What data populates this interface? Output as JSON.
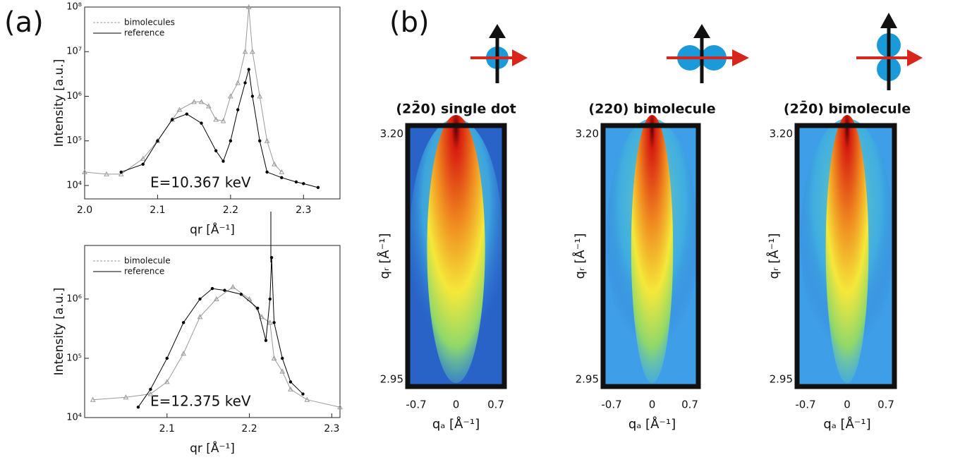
{
  "panel_a_label": "(a)",
  "panel_b_label": "(b)",
  "chart_data": [
    {
      "type": "line",
      "log_y": true,
      "y_label": "Intensity [a.u.]",
      "x_label": "qr [Å⁻¹]",
      "annotation": "E=10.367 keV",
      "xlim": [
        2.0,
        2.35
      ],
      "xticks": [
        {
          "value": 2.0,
          "label": "2.0"
        },
        2.1,
        2.2,
        2.3
      ],
      "ylim": [
        5000,
        100000000
      ],
      "yticks": [
        {
          "value": 10000,
          "label": "10⁴"
        },
        {
          "value": 100000,
          "label": "10⁵"
        },
        {
          "value": 1000000,
          "label": "10⁶"
        },
        {
          "value": 10000000,
          "label": "10⁷"
        },
        {
          "value": 100000000,
          "label": "10⁸"
        }
      ],
      "series": [
        {
          "name": "bimolecules",
          "color": "#999999",
          "marker": "triangle",
          "x": [
            2.0,
            2.03,
            2.05,
            2.08,
            2.1,
            2.12,
            2.13,
            2.15,
            2.16,
            2.17,
            2.18,
            2.19,
            2.2,
            2.21,
            2.22,
            2.225,
            2.23,
            2.24,
            2.25,
            2.26,
            2.27
          ],
          "values": [
            20000,
            18000,
            18000,
            40000,
            100000,
            300000,
            500000,
            750000,
            750000,
            600000,
            300000,
            280000,
            1000000,
            2000000,
            10000000,
            100000000,
            10000000,
            1000000,
            100000,
            30000,
            20000
          ]
        },
        {
          "name": "reference",
          "color": "#000000",
          "marker": "circle",
          "x": [
            2.05,
            2.08,
            2.1,
            2.12,
            2.14,
            2.16,
            2.18,
            2.19,
            2.2,
            2.21,
            2.22,
            2.225,
            2.23,
            2.24,
            2.25,
            2.27,
            2.29,
            2.3,
            2.32
          ],
          "values": [
            20000,
            30000,
            100000,
            300000,
            400000,
            250000,
            60000,
            35000,
            100000,
            500000,
            2000000,
            4000000,
            1000000,
            100000,
            20000,
            15000,
            12000,
            11000,
            9000
          ]
        }
      ]
    },
    {
      "type": "line",
      "log_y": true,
      "y_label": "Intensity [a.u.]",
      "x_label": "qr [Å⁻¹]",
      "annotation": "E=12.375 keV",
      "xlim": [
        2.0,
        2.31
      ],
      "xticks": [
        2.1,
        2.2,
        2.3
      ],
      "ylim": [
        10000,
        8000000
      ],
      "yticks": [
        {
          "value": 10000,
          "label": "10⁴"
        },
        {
          "value": 100000,
          "label": "10⁵"
        },
        {
          "value": 1000000,
          "label": "10⁶"
        }
      ],
      "series": [
        {
          "name": "bimolecule",
          "color": "#999999",
          "marker": "triangle",
          "x": [
            2.01,
            2.05,
            2.08,
            2.1,
            2.12,
            2.14,
            2.16,
            2.18,
            2.2,
            2.215,
            2.225,
            2.23,
            2.24,
            2.25,
            2.27,
            2.31
          ],
          "values": [
            20000,
            22000,
            25000,
            40000,
            120000,
            500000,
            1000000,
            1600000,
            1000000,
            500000,
            400000,
            100000,
            60000,
            30000,
            20000,
            15000
          ]
        },
        {
          "name": "reference",
          "color": "#000000",
          "marker": "circle",
          "x": [
            2.065,
            2.08,
            2.1,
            2.12,
            2.14,
            2.155,
            2.17,
            2.19,
            2.21,
            2.22,
            2.225,
            2.227,
            2.23,
            2.24,
            2.25,
            2.265
          ],
          "values": [
            15000,
            30000,
            100000,
            400000,
            1000000,
            1500000,
            1400000,
            1200000,
            700000,
            200000,
            1000000,
            5000000,
            400000,
            100000,
            40000,
            25000
          ]
        }
      ]
    }
  ],
  "maps": [
    {
      "title": "(22̄0) single dot",
      "y_label": "qᵣ [Å⁻¹]",
      "x_label": "qₐ [Å⁻¹]",
      "y_ticks": [
        "3.20",
        "2.95"
      ],
      "x_ticks": [
        "-0.7",
        "0",
        "0.7"
      ]
    },
    {
      "title": "(220) bimolecule",
      "y_label": "qᵣ [Å⁻¹]",
      "x_label": "qₐ [Å⁻¹]",
      "y_ticks": [
        "3.20",
        "2.95"
      ],
      "x_ticks": [
        "-0.7",
        "0",
        "0.7"
      ]
    },
    {
      "title": "(22̄0) bimolecule",
      "y_label": "qᵣ [Å⁻¹]",
      "x_label": "qₐ [Å⁻¹]",
      "y_ticks": [
        "3.20",
        "2.95"
      ],
      "x_ticks": [
        "-0.7",
        "0",
        "0.7"
      ]
    }
  ]
}
